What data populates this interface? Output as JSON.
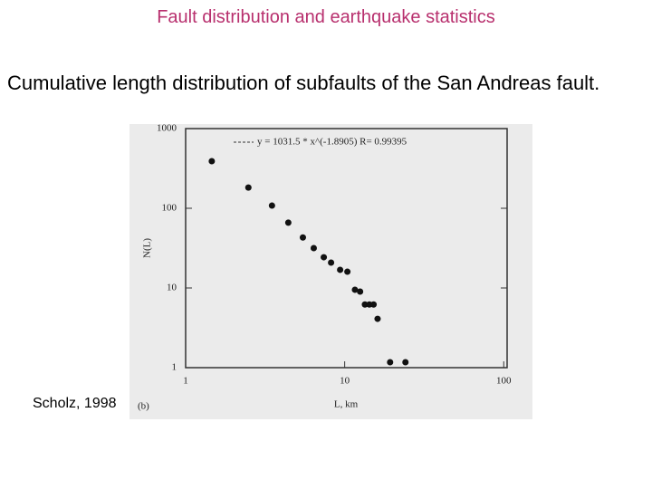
{
  "header": {
    "title": "Fault distribution and earthquake statistics"
  },
  "body": {
    "text": "Cumulative length distribution of subfaults of the San Andreas fault.",
    "citation": "Scholz, 1998"
  },
  "chart_data": {
    "type": "scatter",
    "panel_label": "(b)",
    "fit_label": "y = 1031.5 * x^(-1.8905)  R= 0.99395",
    "x_label": "L, km",
    "y_label": "N(L)",
    "log_x": true,
    "log_y": true,
    "color": "#111111",
    "x": [
      1.46,
      2.48,
      3.49,
      4.42,
      5.46,
      6.39,
      7.39,
      8.21,
      9.36,
      10.4,
      11.6,
      12.5,
      13.4,
      14.3,
      15.2,
      16.1,
      19.3,
      24.1
    ],
    "values": [
      390,
      182,
      108,
      66,
      43,
      31.6,
      24.3,
      20.8,
      16.9,
      16.0,
      9.5,
      9.0,
      6.2,
      6.2,
      6.2,
      4.1,
      1.17,
      1.17
    ],
    "xlim": [
      1,
      105
    ],
    "ylim": [
      1,
      1000
    ],
    "xticks": [
      1,
      10,
      100
    ],
    "yticks": [
      1,
      10,
      100,
      1000
    ]
  }
}
